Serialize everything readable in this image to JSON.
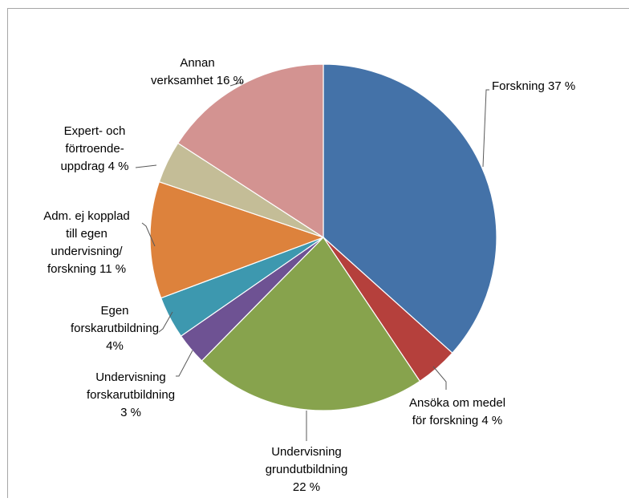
{
  "chart_data": {
    "type": "pie",
    "title": "",
    "start_angle_deg": 0,
    "direction": "clockwise",
    "slices": [
      {
        "label": [
          "Forskning 37 %"
        ],
        "value": 37,
        "color": "#4472A8"
      },
      {
        "label": [
          "Ansöka om medel",
          "för forskning 4 %"
        ],
        "value": 4,
        "color": "#B5403C"
      },
      {
        "label": [
          "Undervisning",
          "grundutbildning",
          "22 %"
        ],
        "value": 22,
        "color": "#87A34D"
      },
      {
        "label": [
          "Undervisning",
          "forskarutbildning",
          "3 %"
        ],
        "value": 3,
        "color": "#6E5293"
      },
      {
        "label": [
          "Egen",
          "forskarutbildning",
          "4%"
        ],
        "value": 4,
        "color": "#3D98AF"
      },
      {
        "label": [
          "Adm. ej kopplad",
          "till egen",
          "undervisning/",
          "forskning 11 %"
        ],
        "value": 11,
        "color": "#DD823C"
      },
      {
        "label": [
          "Expert- och",
          "förtroende-",
          "uppdrag 4 %"
        ],
        "value": 4,
        "color": "#C4BD97"
      },
      {
        "label": [
          "Annan",
          "verksamhet 16 %"
        ],
        "value": 16,
        "color": "#D39391"
      }
    ]
  }
}
